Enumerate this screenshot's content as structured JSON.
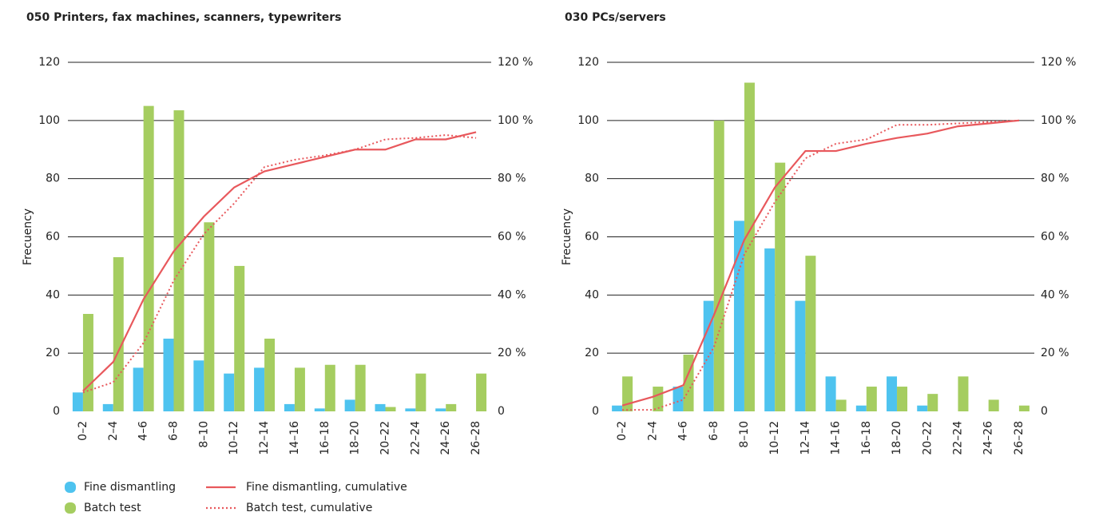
{
  "chart_data": [
    {
      "type": "bar",
      "title": "050 Printers, fax machines, scanners, typewriters",
      "y_label": "Frecuency",
      "categories": [
        "0–2",
        "2–4",
        "4–6",
        "6–8",
        "8–10",
        "10–12",
        "12–14",
        "14–16",
        "16–18",
        "18–20",
        "20–22",
        "22–24",
        "24–26",
        "26–28"
      ],
      "series": [
        {
          "name": "Fine dismantling",
          "type": "bar",
          "color": "#4ec3ef",
          "values": [
            6.5,
            2.5,
            15,
            25,
            17.5,
            13,
            15,
            2.5,
            1,
            4,
            2.5,
            1,
            1,
            0
          ]
        },
        {
          "name": "Batch test",
          "type": "bar",
          "color": "#a5cd60",
          "values": [
            33.5,
            53,
            105,
            103.5,
            65,
            50,
            25,
            15,
            16,
            16,
            1.5,
            13,
            2.5,
            13
          ]
        },
        {
          "name": "Fine dismantling, cumulative",
          "type": "line",
          "axis": "y2",
          "line_style": "solid",
          "color": "#e8585c",
          "values": [
            7,
            17,
            38.5,
            55,
            67,
            77,
            82.5,
            85,
            87.5,
            90,
            90,
            93.5,
            93.5,
            96
          ]
        },
        {
          "name": "Batch test, cumulative",
          "type": "line",
          "axis": "y2",
          "line_style": "dotted",
          "color": "#e8585c",
          "values": [
            6.5,
            10,
            23.5,
            45,
            61,
            71.5,
            84,
            86.5,
            88,
            90,
            93.5,
            94,
            95,
            94
          ]
        }
      ],
      "ylim": [
        0,
        120
      ],
      "yticks": [
        0,
        20,
        40,
        60,
        80,
        100,
        120
      ],
      "y2lim": [
        0,
        120
      ],
      "y2ticks": [
        {
          "value": 0,
          "label": "0"
        },
        {
          "value": 20,
          "label": "20 %"
        },
        {
          "value": 40,
          "label": "40 %"
        },
        {
          "value": 60,
          "label": "60 %"
        },
        {
          "value": 80,
          "label": "80 %"
        },
        {
          "value": 100,
          "label": "100 %"
        },
        {
          "value": 120,
          "label": "120 %"
        }
      ],
      "grid": true
    },
    {
      "type": "bar",
      "title": "030 PCs/servers",
      "y_label": "Frecuency",
      "categories": [
        "0–2",
        "2–4",
        "4–6",
        "6–8",
        "8–10",
        "10–12",
        "12–14",
        "14–16",
        "16–18",
        "18–20",
        "20–22",
        "22–24",
        "24–26",
        "26–28"
      ],
      "series": [
        {
          "type": "bar",
          "color": "#4ec3ef",
          "values": [
            2,
            0,
            8.5,
            38,
            65.5,
            56,
            38,
            12,
            2,
            12,
            2,
            0,
            0,
            0
          ]
        },
        {
          "type": "bar",
          "color": "#a5cd60",
          "values": [
            12,
            8.5,
            19.5,
            100,
            113,
            85.5,
            53.5,
            4,
            8.5,
            8.5,
            6,
            12,
            4,
            2
          ]
        },
        {
          "type": "line",
          "axis": "y2",
          "line_style": "solid",
          "color": "#e8585c",
          "values": [
            2,
            5,
            9,
            33,
            59,
            77,
            89.5,
            89.5,
            92,
            94,
            95.5,
            98,
            99,
            100
          ]
        },
        {
          "type": "line",
          "axis": "y2",
          "line_style": "dotted",
          "color": "#e8585c",
          "values": [
            0.5,
            0.5,
            4,
            22,
            54,
            72,
            87,
            92,
            93.5,
            98.5,
            98.5,
            99,
            99.5,
            100
          ]
        }
      ],
      "ylim": [
        0,
        120
      ],
      "yticks": [
        0,
        20,
        40,
        60,
        80,
        100,
        120
      ],
      "y2lim": [
        0,
        120
      ],
      "y2ticks": [
        {
          "value": 0,
          "label": "0"
        },
        {
          "value": 20,
          "label": "20 %"
        },
        {
          "value": 40,
          "label": "40 %"
        },
        {
          "value": 60,
          "label": "60 %"
        },
        {
          "value": 80,
          "label": "80 %"
        },
        {
          "value": 100,
          "label": "100 %"
        },
        {
          "value": 120,
          "label": "120 %"
        }
      ],
      "grid": true
    }
  ]
}
